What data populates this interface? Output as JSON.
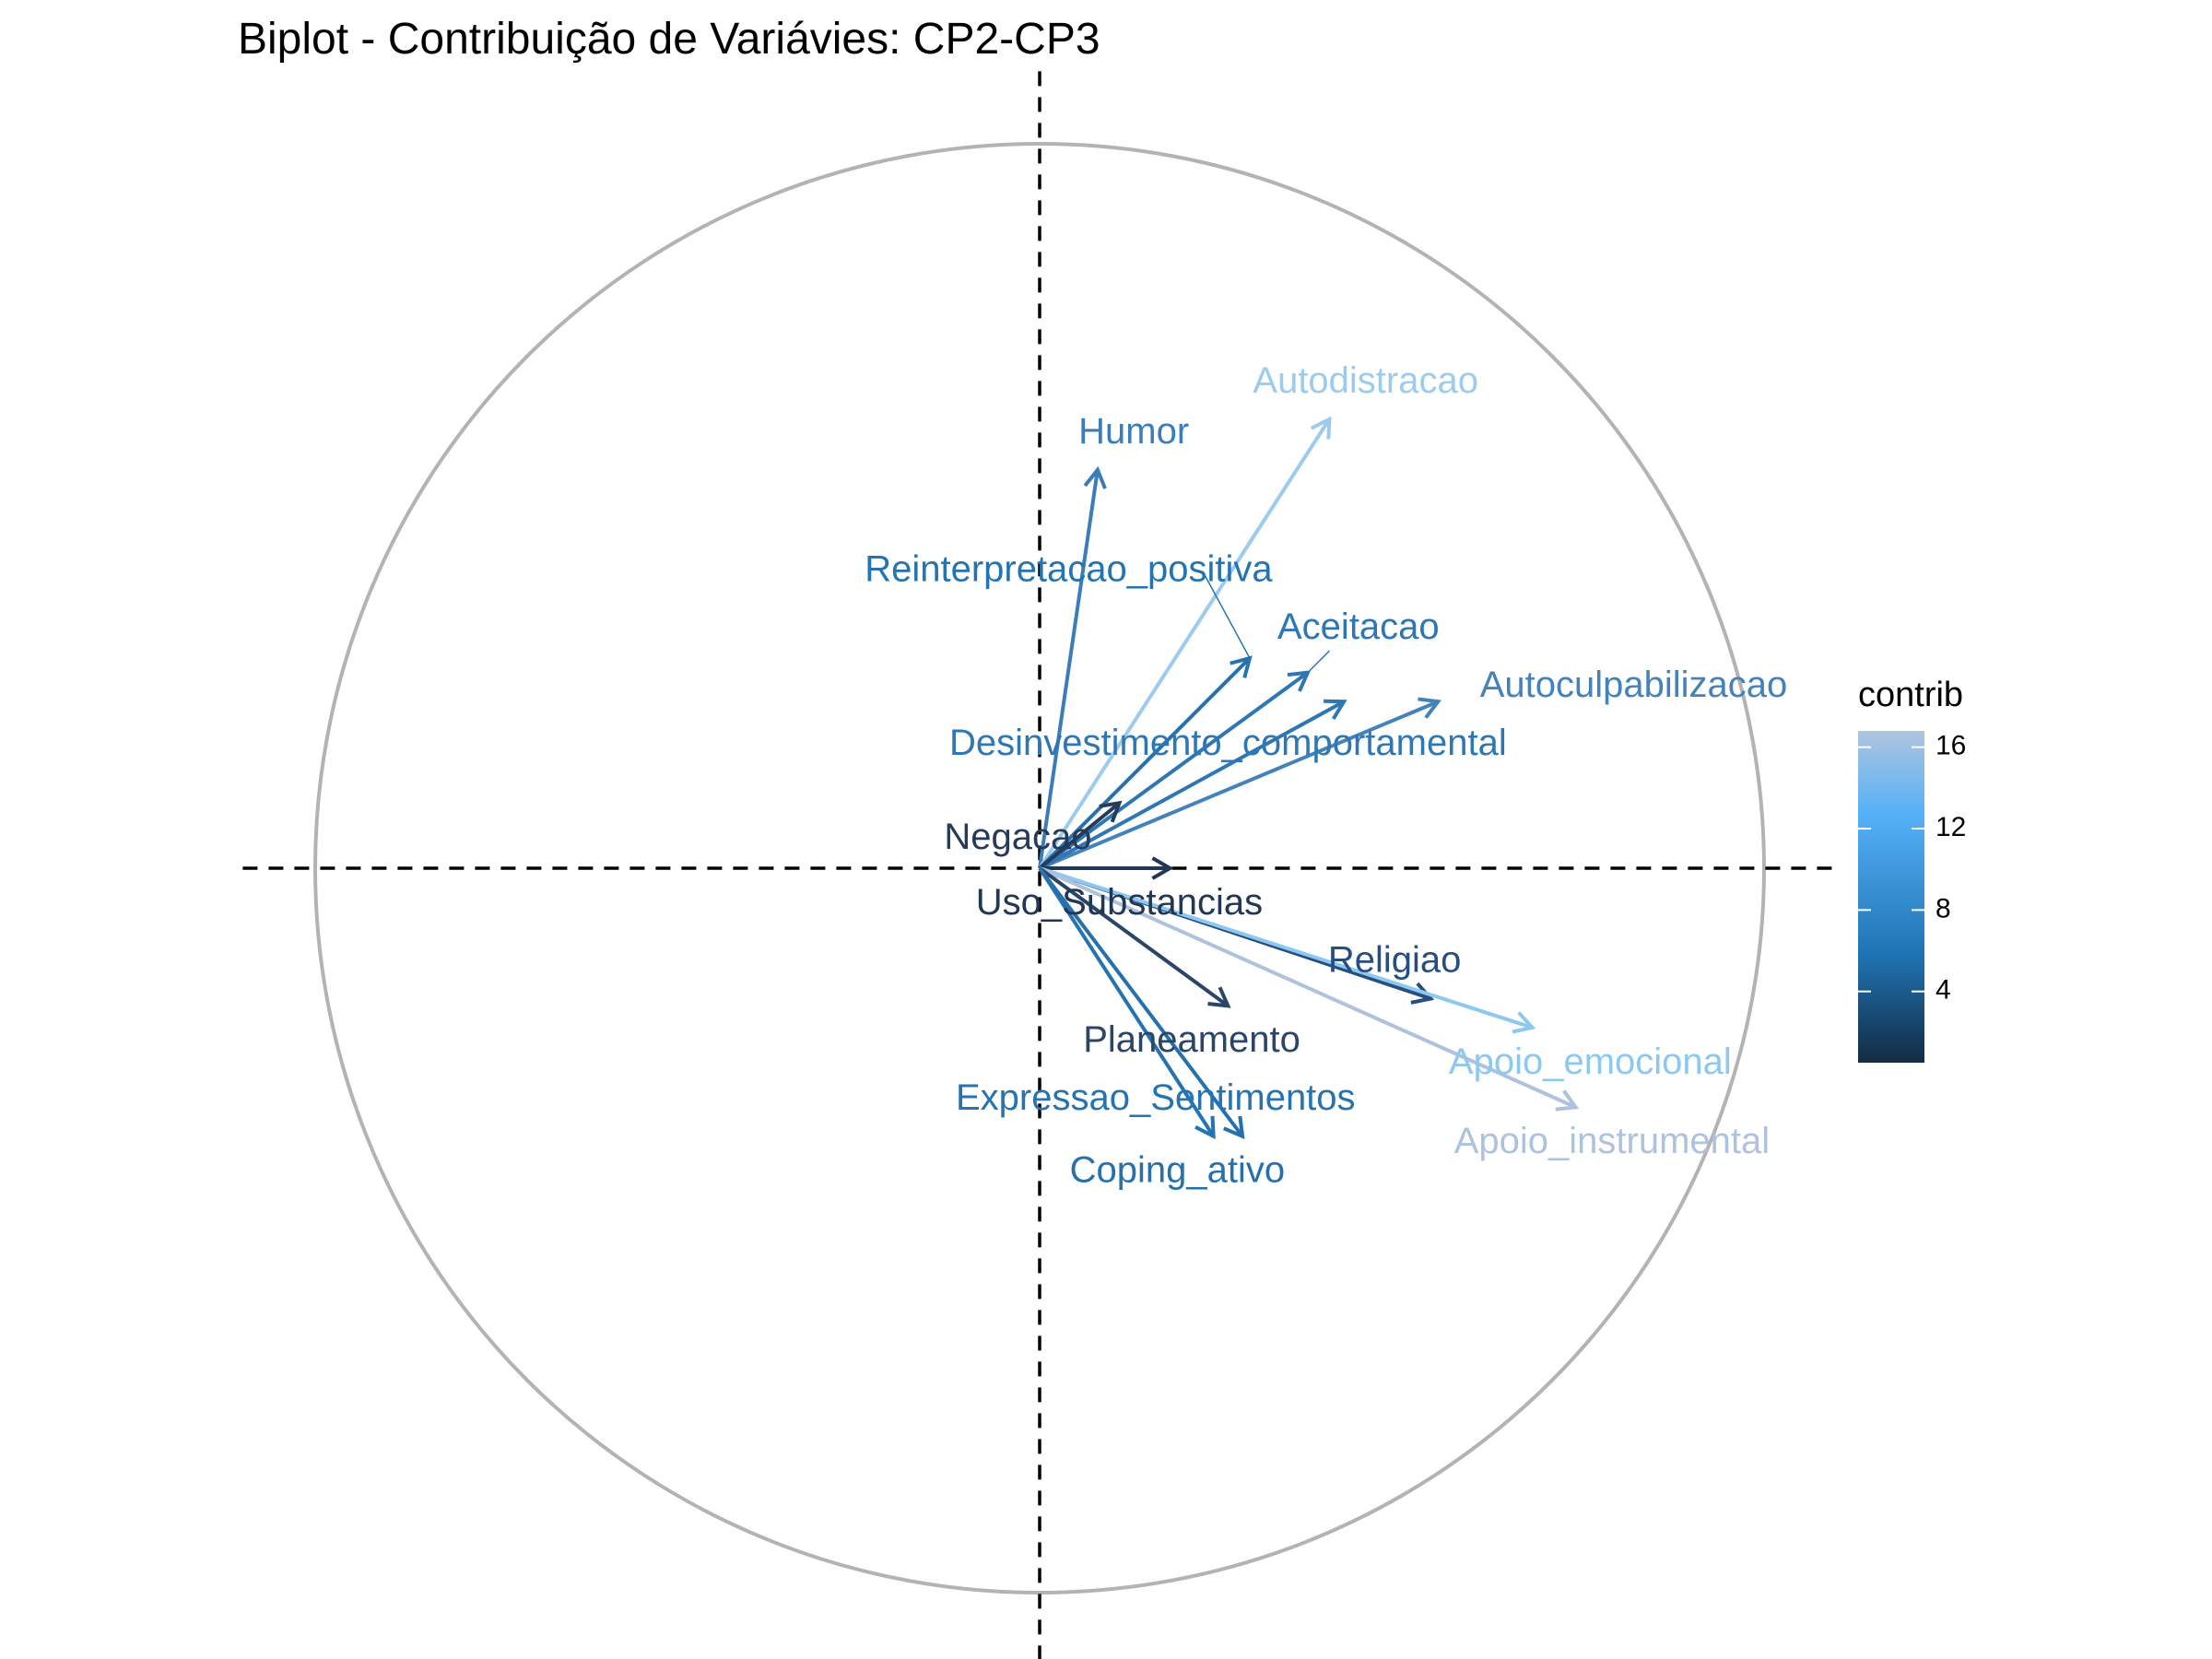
{
  "chart_data": {
    "type": "biplot",
    "title": "Biplot - Contribuição de Variávies: CP2-CP3",
    "xlim": [
      -1.1,
      1.1
    ],
    "ylim": [
      -1.1,
      1.1
    ],
    "grid": false,
    "legend": {
      "title": "contrib",
      "placement": "right",
      "range": [
        0.5,
        16.8
      ],
      "ticks": [
        4,
        8,
        12,
        16
      ],
      "colors": [
        "#132B43",
        "#1f74b4",
        "#56B1F7",
        "#B0C4DE"
      ]
    },
    "variables": [
      {
        "name": "Humor",
        "x": 0.08,
        "y": 0.55,
        "contrib": 7.8,
        "color": "#3a7db8",
        "label_x": 0.13,
        "label_y": 0.6
      },
      {
        "name": "Autodistracao",
        "x": 0.4,
        "y": 0.62,
        "contrib": 13.5,
        "color": "#9ccbee",
        "label_x": 0.45,
        "label_y": 0.67
      },
      {
        "name": "Reinterpretacao_positiva",
        "x": 0.29,
        "y": 0.29,
        "contrib": 5.5,
        "color": "#2573b1",
        "label_x": 0.04,
        "label_y": 0.41
      },
      {
        "name": "Aceitacao",
        "x": 0.37,
        "y": 0.27,
        "contrib": 5.8,
        "color": "#2e77b4",
        "label_x": 0.44,
        "label_y": 0.33
      },
      {
        "name": "Autoculpabilizacao",
        "x": 0.55,
        "y": 0.23,
        "contrib": 8.5,
        "color": "#4482bb",
        "label_x": 0.82,
        "label_y": 0.25
      },
      {
        "name": "Desinvestimento_comportamental",
        "x": 0.42,
        "y": 0.23,
        "contrib": 6.2,
        "color": "#2e77b4",
        "label_x": 0.26,
        "label_y": 0.17
      },
      {
        "name": "Negacao",
        "x": 0.11,
        "y": 0.09,
        "contrib": 1.2,
        "color": "#263a5a",
        "label_x": -0.03,
        "label_y": 0.04
      },
      {
        "name": "Uso_Substancias",
        "x": 0.18,
        "y": 0.0,
        "contrib": 0.9,
        "color": "#223756",
        "label_x": 0.11,
        "label_y": -0.05
      },
      {
        "name": "Religiao",
        "x": 0.54,
        "y": -0.18,
        "contrib": 3.8,
        "color": "#264e80",
        "label_x": 0.49,
        "label_y": -0.13
      },
      {
        "name": "Apoio_emocional",
        "x": 0.68,
        "y": -0.22,
        "contrib": 13.8,
        "color": "#8dc8f1",
        "label_x": 0.76,
        "label_y": -0.27
      },
      {
        "name": "Apoio_instrumental",
        "x": 0.74,
        "y": -0.33,
        "contrib": 16.0,
        "color": "#aec2dd",
        "label_x": 0.79,
        "label_y": -0.38
      },
      {
        "name": "Planeamento",
        "x": 0.26,
        "y": -0.19,
        "contrib": 2.0,
        "color": "#2a4567",
        "label_x": 0.21,
        "label_y": -0.24
      },
      {
        "name": "Expressao_Sentimentos",
        "x": 0.24,
        "y": -0.37,
        "contrib": 5.5,
        "color": "#2573b1",
        "label_x": 0.16,
        "label_y": -0.32
      },
      {
        "name": "Coping_ativo",
        "x": 0.28,
        "y": -0.37,
        "contrib": 5.0,
        "color": "#2570ad",
        "label_x": 0.19,
        "label_y": -0.42
      }
    ]
  }
}
